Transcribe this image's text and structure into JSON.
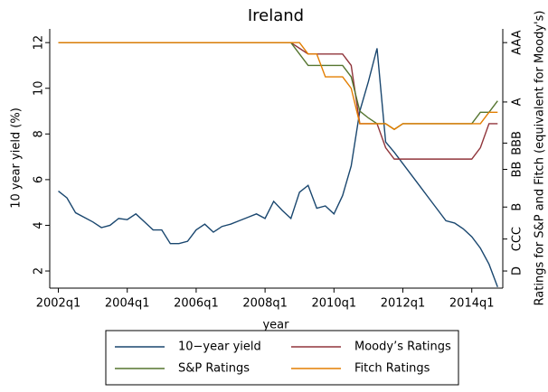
{
  "chart_data": {
    "type": "line",
    "title": "Ireland",
    "xlabel": "year",
    "ylabel": "10 year yield (%)",
    "y2label": "Ratings for S&P and Fitch (equivalent for Moody's)",
    "x": [
      168,
      169,
      170,
      171,
      172,
      173,
      174,
      175,
      176,
      177,
      178,
      179,
      180,
      181,
      182,
      183,
      184,
      185,
      186,
      187,
      188,
      189,
      190,
      191,
      192,
      193,
      194,
      195,
      196,
      197,
      198,
      199,
      200,
      201,
      202,
      203,
      204,
      205,
      206,
      207,
      208,
      209,
      210,
      211,
      212,
      213,
      214,
      215,
      216,
      217,
      218,
      219
    ],
    "xlim": [
      167,
      219.6
    ],
    "xticks": [
      {
        "value": 168,
        "label": "2002q1"
      },
      {
        "value": 176,
        "label": "2004q1"
      },
      {
        "value": 184,
        "label": "2006q1"
      },
      {
        "value": 192,
        "label": "2008q1"
      },
      {
        "value": 200,
        "label": "2010q1"
      },
      {
        "value": 208,
        "label": "2012q1"
      },
      {
        "value": 216,
        "label": "2014q1"
      }
    ],
    "ylim": [
      1.25,
      12.6
    ],
    "yticks": [
      2,
      4,
      6,
      8,
      10,
      12
    ],
    "y2lim": [
      1.25,
      12.6
    ],
    "y2ticks": [
      {
        "value": 12,
        "label": "AAA"
      },
      {
        "value": 9.4,
        "label": "A"
      },
      {
        "value": 7.6,
        "label": "BBB"
      },
      {
        "value": 6.45,
        "label": "BB"
      },
      {
        "value": 4.8,
        "label": "B"
      },
      {
        "value": 3.4,
        "label": "CCC"
      },
      {
        "value": 2,
        "label": "D"
      }
    ],
    "series": [
      {
        "name": "10−year yield",
        "color": "#1a476f",
        "values": [
          5.5,
          5.2,
          4.55,
          4.35,
          4.15,
          3.9,
          4.0,
          4.3,
          4.25,
          4.5,
          4.15,
          3.8,
          3.8,
          3.2,
          3.2,
          3.3,
          3.8,
          4.05,
          3.7,
          3.95,
          4.05,
          4.2,
          4.35,
          4.5,
          4.3,
          5.05,
          4.65,
          4.3,
          5.45,
          5.75,
          4.75,
          4.85,
          4.5,
          5.3,
          6.6,
          9.0,
          10.3,
          11.75,
          7.65,
          7.2,
          6.7,
          6.2,
          5.7,
          5.2,
          4.7,
          4.2,
          4.1,
          3.85,
          3.5,
          3.0,
          2.3,
          1.3
        ]
      },
      {
        "name": "Moody’s Ratings",
        "color": "#90353b",
        "axis": "y2",
        "values": [
          12,
          12,
          12,
          12,
          12,
          12,
          12,
          12,
          12,
          12,
          12,
          12,
          12,
          12,
          12,
          12,
          12,
          12,
          12,
          12,
          12,
          12,
          12,
          12,
          12,
          12,
          12,
          12,
          11.75,
          11.5,
          11.5,
          11.5,
          11.5,
          11.5,
          11.0,
          8.45,
          8.45,
          8.45,
          7.4,
          6.9,
          6.9,
          6.9,
          6.9,
          6.9,
          6.9,
          6.9,
          6.9,
          6.9,
          6.9,
          7.4,
          8.45,
          8.45
        ]
      },
      {
        "name": "S&P Ratings",
        "color": "#55752f",
        "axis": "y2",
        "values": [
          12,
          12,
          12,
          12,
          12,
          12,
          12,
          12,
          12,
          12,
          12,
          12,
          12,
          12,
          12,
          12,
          12,
          12,
          12,
          12,
          12,
          12,
          12,
          12,
          12,
          12,
          12,
          12,
          11.5,
          11.0,
          11.0,
          11.0,
          11.0,
          11.0,
          10.5,
          9.0,
          8.7,
          8.45,
          8.45,
          8.2,
          8.45,
          8.45,
          8.45,
          8.45,
          8.45,
          8.45,
          8.45,
          8.45,
          8.45,
          8.95,
          8.95,
          9.45
        ]
      },
      {
        "name": "Fitch Ratings",
        "color": "#e37e00",
        "axis": "y2",
        "values": [
          12,
          12,
          12,
          12,
          12,
          12,
          12,
          12,
          12,
          12,
          12,
          12,
          12,
          12,
          12,
          12,
          12,
          12,
          12,
          12,
          12,
          12,
          12,
          12,
          12,
          12,
          12,
          12,
          12,
          11.5,
          11.5,
          10.5,
          10.5,
          10.5,
          10.0,
          8.45,
          8.45,
          8.45,
          8.45,
          8.2,
          8.45,
          8.45,
          8.45,
          8.45,
          8.45,
          8.45,
          8.45,
          8.45,
          8.45,
          8.45,
          8.95,
          8.95
        ]
      }
    ]
  }
}
